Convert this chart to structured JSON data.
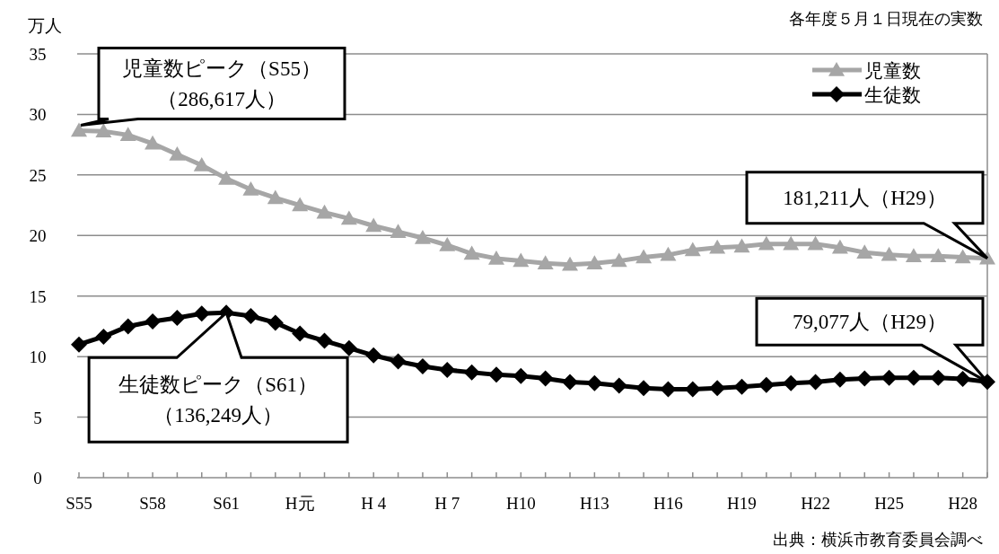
{
  "chart_data": {
    "type": "line",
    "ylabel": "万人",
    "categories": [
      "S55",
      null,
      null,
      "S58",
      null,
      null,
      "S61",
      null,
      null,
      "H元",
      null,
      null,
      "H 4",
      null,
      null,
      "H 7",
      null,
      null,
      "H10",
      null,
      null,
      "H13",
      null,
      null,
      "H16",
      null,
      null,
      "H19",
      null,
      null,
      "H22",
      null,
      null,
      "H25",
      null,
      null,
      "H28",
      null
    ],
    "series": [
      {
        "name": "児童数",
        "color": "#a6a6a6",
        "marker": "triangle",
        "values": [
          28.66,
          28.6,
          28.3,
          27.6,
          26.7,
          25.8,
          24.7,
          23.8,
          23.1,
          22.5,
          21.9,
          21.4,
          20.8,
          20.3,
          19.8,
          19.2,
          18.5,
          18.1,
          17.9,
          17.7,
          17.6,
          17.7,
          17.9,
          18.2,
          18.4,
          18.8,
          19.0,
          19.1,
          19.3,
          19.3,
          19.3,
          19.0,
          18.6,
          18.4,
          18.3,
          18.3,
          18.2,
          18.12
        ]
      },
      {
        "name": "生徒数",
        "color": "#000000",
        "marker": "diamond",
        "values": [
          11.0,
          11.65,
          12.5,
          12.9,
          13.2,
          13.55,
          13.62,
          13.35,
          12.8,
          11.9,
          11.3,
          10.7,
          10.1,
          9.6,
          9.2,
          8.9,
          8.7,
          8.5,
          8.4,
          8.2,
          7.9,
          7.8,
          7.6,
          7.4,
          7.3,
          7.3,
          7.4,
          7.5,
          7.65,
          7.8,
          7.9,
          8.1,
          8.2,
          8.25,
          8.25,
          8.25,
          8.15,
          7.91
        ]
      }
    ],
    "ylim": [
      0,
      35
    ],
    "yticks": [
      0,
      5,
      10,
      15,
      20,
      25,
      30,
      35
    ],
    "grid": "y",
    "legend": "top right",
    "annotations": [
      {
        "text": "児童数ピーク（S55）（286,617人）",
        "x": "S55",
        "y": 28.66
      },
      {
        "text": "生徒数ピーク（S61）（136,249人）",
        "x": "S61",
        "y": 13.62
      },
      {
        "text": "181,211人（H29）",
        "y": 18.12
      },
      {
        "text": "79,077人（H29）",
        "y": 7.91
      },
      "各年度５月１日現在の実数",
      "出典：横浜市教育委員会調べ"
    ]
  }
}
